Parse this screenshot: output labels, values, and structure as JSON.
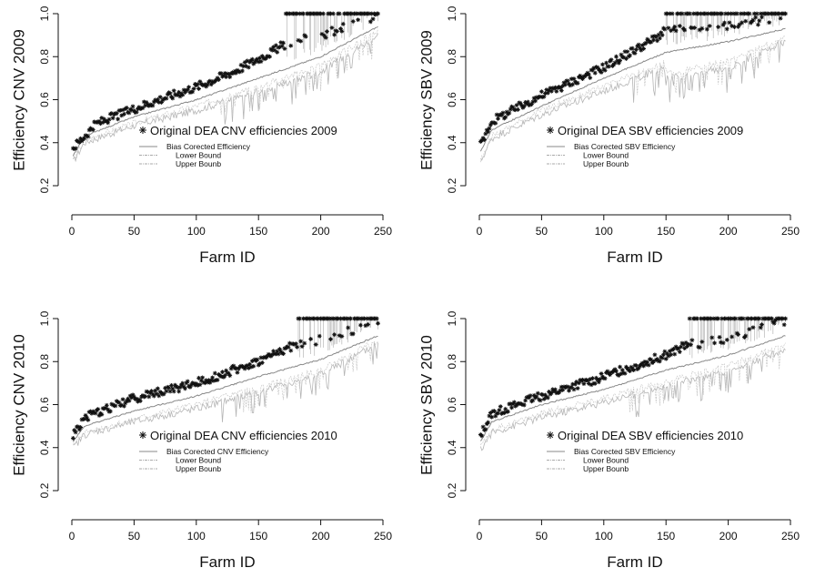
{
  "chart_data": [
    {
      "type": "scatter",
      "ylabel": "Efficiency CNV 2009",
      "xlabel": "Farm ID",
      "xlim": [
        0,
        250
      ],
      "ylim": [
        0.2,
        1.0
      ],
      "xticks": [
        "0",
        "50",
        "100",
        "150",
        "200",
        "250"
      ],
      "yticks": [
        "0.2",
        "0.4",
        "0.6",
        "0.8",
        "1.0"
      ],
      "n_farms": 246,
      "legend": {
        "placement": "center-left",
        "points_label": "Original DEA CNV efficiencies 2009",
        "line_labels": [
          "Bias Corected Efficiency",
          "Lower Bound",
          "Upper Bounb"
        ]
      },
      "series": [
        {
          "name": "Original DEA CNV efficiencies 2009",
          "profile": {
            "x": [
              0,
              20,
              60,
              100,
              130,
              160,
              172,
              200,
              246
            ],
            "y": [
              0.37,
              0.49,
              0.58,
              0.66,
              0.73,
              0.82,
              0.86,
              0.9,
              0.99
            ]
          },
          "efficient_from": 172
        },
        {
          "name": "Bias Corected Efficiency",
          "profile": {
            "x": [
              0,
              10,
              50,
              100,
              150,
              200,
              246
            ],
            "y": [
              0.33,
              0.43,
              0.52,
              0.6,
              0.7,
              0.8,
              0.94
            ]
          }
        },
        {
          "name": "Lower Bound",
          "profile": {
            "x": [
              0,
              10,
              50,
              100,
              150,
              200,
              246
            ],
            "y": [
              0.3,
              0.4,
              0.48,
              0.55,
              0.64,
              0.73,
              0.9
            ]
          }
        },
        {
          "name": "Upper Bounb",
          "profile": {
            "x": [
              0,
              10,
              50,
              100,
              150,
              200,
              246
            ],
            "y": [
              0.31,
              0.41,
              0.49,
              0.57,
              0.66,
              0.76,
              0.92
            ]
          }
        }
      ]
    },
    {
      "type": "scatter",
      "ylabel": "Efficiency SBV 2009",
      "xlabel": "Farm ID",
      "xlim": [
        0,
        250
      ],
      "ylim": [
        0.2,
        1.0
      ],
      "xticks": [
        "0",
        "50",
        "100",
        "150",
        "200",
        "250"
      ],
      "yticks": [
        "0.2",
        "0.4",
        "0.6",
        "0.8",
        "1.0"
      ],
      "n_farms": 246,
      "legend": {
        "placement": "center-left",
        "points_label": "Original DEA SBV efficiencies 2009",
        "line_labels": [
          "Bias Corected SBV Efficiency",
          "Lower Bound",
          "Upper Bounb"
        ]
      },
      "series": [
        {
          "name": "Original DEA SBV efficiencies 2009",
          "profile": {
            "x": [
              0,
              10,
              50,
              100,
              140,
              150,
              200,
              246
            ],
            "y": [
              0.38,
              0.5,
              0.62,
              0.75,
              0.88,
              0.92,
              0.94,
              0.99
            ]
          },
          "efficient_from": 150
        },
        {
          "name": "Bias Corected SBV Efficiency",
          "profile": {
            "x": [
              0,
              10,
              50,
              100,
              150,
              200,
              246
            ],
            "y": [
              0.35,
              0.46,
              0.57,
              0.7,
              0.82,
              0.87,
              0.93
            ]
          }
        },
        {
          "name": "Lower Bound",
          "profile": {
            "x": [
              0,
              10,
              50,
              100,
              148,
              152,
              200,
              246
            ],
            "y": [
              0.3,
              0.42,
              0.53,
              0.64,
              0.75,
              0.7,
              0.75,
              0.87
            ]
          }
        },
        {
          "name": "Upper Bounb",
          "profile": {
            "x": [
              0,
              10,
              50,
              100,
              148,
              152,
              200,
              246
            ],
            "y": [
              0.31,
              0.43,
              0.55,
              0.66,
              0.77,
              0.72,
              0.78,
              0.89
            ]
          }
        }
      ]
    },
    {
      "type": "scatter",
      "ylabel": "Efficiency CNV 2010",
      "xlabel": "Farm ID",
      "xlim": [
        0,
        250
      ],
      "ylim": [
        0.2,
        1.0
      ],
      "xticks": [
        "0",
        "50",
        "100",
        "150",
        "200",
        "250"
      ],
      "yticks": [
        "0.2",
        "0.4",
        "0.6",
        "0.8",
        "1.0"
      ],
      "n_farms": 246,
      "legend": {
        "placement": "center-left",
        "points_label": "Original DEA CNV efficiencies 2010",
        "line_labels": [
          "Bias Corected CNV Efficiency",
          "Lower Bound",
          "Upper Bounb"
        ]
      },
      "series": [
        {
          "name": "Original DEA CNV efficiencies 2010",
          "profile": {
            "x": [
              0,
              10,
              50,
              100,
              150,
              180,
              200,
              246
            ],
            "y": [
              0.45,
              0.54,
              0.63,
              0.7,
              0.8,
              0.88,
              0.9,
              0.98
            ]
          },
          "efficient_from": 182
        },
        {
          "name": "Bias Corected CNV Efficiency",
          "profile": {
            "x": [
              0,
              10,
              50,
              100,
              150,
              200,
              246
            ],
            "y": [
              0.42,
              0.5,
              0.57,
              0.64,
              0.73,
              0.81,
              0.92
            ]
          }
        },
        {
          "name": "Lower Bound",
          "profile": {
            "x": [
              0,
              10,
              50,
              100,
              150,
              200,
              246
            ],
            "y": [
              0.39,
              0.46,
              0.52,
              0.58,
              0.66,
              0.74,
              0.88
            ]
          }
        },
        {
          "name": "Upper Bounb",
          "profile": {
            "x": [
              0,
              10,
              50,
              100,
              150,
              200,
              246
            ],
            "y": [
              0.4,
              0.47,
              0.53,
              0.6,
              0.68,
              0.76,
              0.9
            ]
          }
        }
      ]
    },
    {
      "type": "scatter",
      "ylabel": "Efficiency SBV 2010",
      "xlabel": "Farm ID",
      "xlim": [
        0,
        250
      ],
      "ylim": [
        0.2,
        1.0
      ],
      "xticks": [
        "0",
        "50",
        "100",
        "150",
        "200",
        "250"
      ],
      "yticks": [
        "0.2",
        "0.4",
        "0.6",
        "0.8",
        "1.0"
      ],
      "n_farms": 246,
      "legend": {
        "placement": "center-left",
        "points_label": "Original DEA SBV efficiencies 2010",
        "line_labels": [
          "Bias Corected SBV Efficiency",
          "Lower Bound",
          "Upper Bounb"
        ]
      },
      "series": [
        {
          "name": "Original DEA SBV efficiencies 2010",
          "profile": {
            "x": [
              0,
              10,
              50,
              100,
              150,
              168,
              200,
              246
            ],
            "y": [
              0.45,
              0.56,
              0.64,
              0.73,
              0.83,
              0.88,
              0.9,
              0.99
            ]
          },
          "efficient_from": 168
        },
        {
          "name": "Bias Corected SBV Efficiency",
          "profile": {
            "x": [
              0,
              10,
              50,
              100,
              150,
              200,
              246
            ],
            "y": [
              0.42,
              0.52,
              0.6,
              0.67,
              0.76,
              0.83,
              0.92
            ]
          }
        },
        {
          "name": "Lower Bound",
          "profile": {
            "x": [
              0,
              10,
              50,
              100,
              150,
              200,
              246
            ],
            "y": [
              0.38,
              0.47,
              0.54,
              0.61,
              0.69,
              0.75,
              0.86
            ]
          }
        },
        {
          "name": "Upper Bounb",
          "profile": {
            "x": [
              0,
              10,
              50,
              100,
              150,
              200,
              246
            ],
            "y": [
              0.39,
              0.48,
              0.56,
              0.63,
              0.71,
              0.78,
              0.88
            ]
          }
        }
      ]
    }
  ]
}
